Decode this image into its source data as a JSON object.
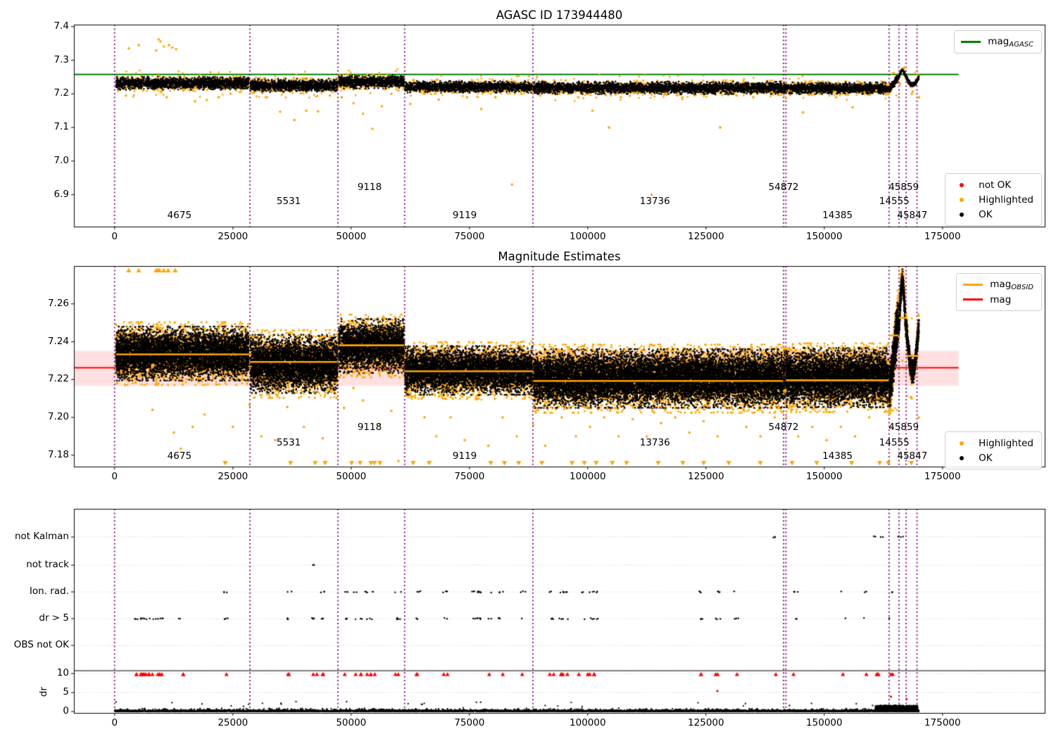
{
  "titles": {
    "top": "AGASC ID 173944480",
    "middle": "Magnitude Estimates"
  },
  "colors": {
    "ok": "#000000",
    "highlighted": "#ffa500",
    "not_ok": "#ff0000",
    "mag_agasc_line": "#008000",
    "mag_line": "#ff0000",
    "mag_band": "rgba(255,0,0,0.12)",
    "obsid_line": "#ffa500",
    "vline": "#800080",
    "grid": "#c3c3c3",
    "spine": "#000000"
  },
  "chart_data": [
    {
      "id": "mag-overview",
      "type": "scatter",
      "title": "AGASC ID 173944480",
      "xlim": [
        -8600,
        196600
      ],
      "ylim": [
        6.805,
        7.406
      ],
      "xticks": [
        0,
        25000,
        50000,
        75000,
        100000,
        125000,
        150000,
        175000
      ],
      "yticks": [
        6.9,
        7.0,
        7.1,
        7.2,
        7.3,
        7.4
      ],
      "ytick_decimals": 1,
      "mag_agasc": 7.258,
      "line_xmax": 178400,
      "vlines": [
        0,
        28600,
        47200,
        61300,
        88400,
        141400,
        141900,
        163700,
        165800,
        167300,
        169600
      ],
      "label_rows_y": [
        6.92,
        6.878,
        6.836
      ],
      "legend_lines": [
        {
          "label": "mag",
          "sub": "AGASC",
          "color": "#008000"
        }
      ],
      "legend_points": [
        {
          "label": "not OK",
          "color": "#ff0000"
        },
        {
          "label": "Highlighted",
          "color": "#ffa500"
        },
        {
          "label": "OK",
          "color": "#000000"
        }
      ],
      "obsids": [
        {
          "id": "4675",
          "x0": 300,
          "x1": 28400,
          "ylo": 7.214,
          "yhi": 7.249,
          "shape": "flat",
          "label_x": 13700,
          "label_row": 2
        },
        {
          "id": "5531",
          "x0": 28700,
          "x1": 47100,
          "ylo": 7.207,
          "yhi": 7.243,
          "shape": "flat",
          "label_x": 36800,
          "label_row": 1
        },
        {
          "id": "9118",
          "x0": 47400,
          "x1": 61200,
          "ylo": 7.218,
          "yhi": 7.2535,
          "shape": "flat",
          "label_x": 53900,
          "label_row": 0
        },
        {
          "id": "9119",
          "x0": 61400,
          "x1": 88300,
          "ylo": 7.2053,
          "yhi": 7.2367,
          "shape": "flat",
          "label_x": 74000,
          "label_row": 2
        },
        {
          "id": "13736",
          "x0": 88500,
          "x1": 141300,
          "ylo": 7.201,
          "yhi": 7.2346,
          "shape": "flat",
          "label_x": 114200,
          "label_row": 1
        },
        {
          "id": "54872",
          "x0": 141400,
          "x1": 141800,
          "ylo": 7.201,
          "yhi": 7.2325,
          "shape": "flat",
          "label_x": 141400,
          "label_row": 0
        },
        {
          "id": "14385",
          "x0": 141900,
          "x1": 163600,
          "ylo": 7.201,
          "yhi": 7.2325,
          "shape": "flat",
          "label_x": 152800,
          "label_row": 2
        },
        {
          "id": "14555",
          "x0": 163700,
          "x1": 165700,
          "ylo": 7.207,
          "yhi": 7.2555,
          "shape": "rise",
          "label_x": 164800,
          "label_row": 1
        },
        {
          "id": "45859",
          "x0": 165800,
          "x1": 167200,
          "ylo": 7.243,
          "yhi": 7.272,
          "shape": "bump",
          "label_x": 166800,
          "label_row": 0
        },
        {
          "id": "45847",
          "x0": 167300,
          "x1": 170000,
          "ylo": 7.214,
          "yhi": 7.253,
          "shape": "dip",
          "label_x": 168600,
          "label_row": 2
        }
      ],
      "outliers": [
        [
          3000,
          7.335
        ],
        [
          5100,
          7.345
        ],
        [
          8800,
          7.329
        ],
        [
          9300,
          7.362
        ],
        [
          9700,
          7.356
        ],
        [
          10400,
          7.341
        ],
        [
          11500,
          7.345
        ],
        [
          12200,
          7.338
        ],
        [
          13000,
          7.333
        ],
        [
          2400,
          7.195
        ],
        [
          6000,
          7.21
        ],
        [
          11000,
          7.19
        ],
        [
          14500,
          7.21
        ],
        [
          17000,
          7.178
        ],
        [
          19500,
          7.182
        ],
        [
          22000,
          7.19
        ],
        [
          24500,
          7.2
        ],
        [
          26500,
          7.205
        ],
        [
          29500,
          7.204
        ],
        [
          32000,
          7.19
        ],
        [
          35000,
          7.147
        ],
        [
          38000,
          7.122
        ],
        [
          40500,
          7.15
        ],
        [
          43000,
          7.148
        ],
        [
          45500,
          7.195
        ],
        [
          48000,
          7.19
        ],
        [
          50500,
          7.172
        ],
        [
          52500,
          7.141
        ],
        [
          54500,
          7.096
        ],
        [
          56500,
          7.163
        ],
        [
          58500,
          7.2
        ],
        [
          60000,
          7.21
        ],
        [
          62500,
          7.17
        ],
        [
          65500,
          7.2
        ],
        [
          68500,
          7.183
        ],
        [
          71500,
          7.205
        ],
        [
          74500,
          7.19
        ],
        [
          77500,
          7.155
        ],
        [
          80500,
          7.19
        ],
        [
          84000,
          6.93
        ],
        [
          86000,
          7.2
        ],
        [
          90000,
          7.195
        ],
        [
          94000,
          7.2
        ],
        [
          98000,
          7.19
        ],
        [
          101000,
          7.15
        ],
        [
          104500,
          7.1
        ],
        [
          107000,
          7.19
        ],
        [
          110500,
          7.205
        ],
        [
          113500,
          6.9
        ],
        [
          116500,
          7.2
        ],
        [
          120000,
          7.19
        ],
        [
          124000,
          7.2
        ],
        [
          128000,
          7.1
        ],
        [
          131500,
          7.195
        ],
        [
          135000,
          7.19
        ],
        [
          139000,
          7.205
        ],
        [
          142500,
          7.21
        ],
        [
          145500,
          7.145
        ],
        [
          149000,
          7.2
        ],
        [
          152500,
          7.19
        ],
        [
          156000,
          7.16
        ],
        [
          158500,
          7.205
        ],
        [
          161000,
          7.21
        ],
        [
          163500,
          7.2
        ],
        [
          166000,
          7.229
        ],
        [
          168500,
          7.2
        ],
        [
          170000,
          7.19
        ]
      ]
    },
    {
      "id": "mag-estimates",
      "type": "scatter",
      "title": "Magnitude Estimates",
      "xlim": [
        -8600,
        196600
      ],
      "ylim": [
        7.174,
        7.28
      ],
      "xticks": [
        0,
        25000,
        50000,
        75000,
        100000,
        125000,
        150000,
        175000
      ],
      "yticks": [
        7.18,
        7.2,
        7.22,
        7.24,
        7.26
      ],
      "ytick_decimals": 2,
      "mag": 7.2263,
      "mag_band": [
        7.2167,
        7.2352
      ],
      "line_xmax": 178400,
      "vlines": [
        0,
        28600,
        47200,
        61300,
        88400,
        141400,
        141900,
        163700,
        165800,
        167300,
        169600
      ],
      "label_rows_y": [
        7.1945,
        7.1863,
        7.1792
      ],
      "legend_lines": [
        {
          "label": "mag",
          "sub": "OBSID",
          "color": "#ffa500"
        },
        {
          "label": "mag",
          "color": "#ff0000"
        }
      ],
      "legend_points": [
        {
          "label": "Highlighted",
          "color": "#ffa500"
        },
        {
          "label": "OK",
          "color": "#000000"
        }
      ],
      "obsids": [
        {
          "id": "4675",
          "x0": 300,
          "x1": 28400,
          "ylo": 7.221,
          "yhi": 7.2465,
          "line": 7.2333,
          "shape": "flat",
          "label_x": 13700,
          "label_row": 2
        },
        {
          "id": "5531",
          "x0": 28700,
          "x1": 47100,
          "ylo": 7.2145,
          "yhi": 7.242,
          "line": 7.2293,
          "shape": "flat",
          "label_x": 36800,
          "label_row": 1
        },
        {
          "id": "9118",
          "x0": 47400,
          "x1": 61200,
          "ylo": 7.225,
          "yhi": 7.2505,
          "line": 7.2381,
          "shape": "flat",
          "label_x": 53900,
          "label_row": 0
        },
        {
          "id": "9119",
          "x0": 61400,
          "x1": 88300,
          "ylo": 7.2133,
          "yhi": 7.2363,
          "line": 7.2244,
          "shape": "flat",
          "label_x": 74000,
          "label_row": 2
        },
        {
          "id": "13736",
          "x0": 88500,
          "x1": 141300,
          "ylo": 7.2067,
          "yhi": 7.2344,
          "line": 7.2193,
          "shape": "flat",
          "label_x": 114200,
          "label_row": 1
        },
        {
          "id": "54872",
          "x0": 141400,
          "x1": 141800,
          "ylo": 7.207,
          "yhi": 7.235,
          "shape": "flat",
          "label_x": 141400,
          "label_row": 0
        },
        {
          "id": "14385",
          "x0": 141900,
          "x1": 163600,
          "ylo": 7.207,
          "yhi": 7.235,
          "line": 7.2196,
          "shape": "flat",
          "label_x": 152800,
          "label_row": 2
        },
        {
          "id": "14555",
          "x0": 163700,
          "x1": 165700,
          "ylo": 7.206,
          "yhi": 7.258,
          "line": 7.2433,
          "shape": "rise",
          "label_x": 164800,
          "label_row": 1
        },
        {
          "id": "45859",
          "x0": 165800,
          "x1": 167200,
          "ylo": 7.236,
          "yhi": 7.2745,
          "line": 7.2526,
          "shape": "bump",
          "label_x": 166800,
          "label_row": 0
        },
        {
          "id": "45847",
          "x0": 167300,
          "x1": 170000,
          "ylo": 7.212,
          "yhi": 7.2515,
          "line": 7.2325,
          "shape": "dip",
          "label_x": 168600,
          "label_row": 2
        }
      ],
      "clip_top_x": [
        3000,
        5100,
        8800,
        9200,
        9500,
        10400,
        11300,
        12800
      ],
      "clip_bottom_x": [
        23400,
        37200,
        42400,
        44500,
        50100,
        51900,
        54200,
        54900,
        56100,
        63100,
        66500,
        79500,
        82400,
        85400,
        90300,
        96700,
        99300,
        101800,
        105200,
        108200,
        114900,
        120100,
        124500,
        129800,
        136500,
        143200,
        148400,
        155800,
        161700,
        163500,
        168400
      ],
      "outliers": [
        [
          8000,
          7.204
        ],
        [
          12500,
          7.192
        ],
        [
          14000,
          7.1835
        ],
        [
          16500,
          7.195
        ],
        [
          19000,
          7.2015
        ],
        [
          25000,
          7.195
        ],
        [
          28500,
          7.2065
        ],
        [
          31000,
          7.19
        ],
        [
          34000,
          7.188
        ],
        [
          36500,
          7.2055
        ],
        [
          40000,
          7.195
        ],
        [
          44000,
          7.189
        ],
        [
          48500,
          7.205
        ],
        [
          50500,
          7.2155
        ],
        [
          52500,
          7.209
        ],
        [
          56000,
          7.196
        ],
        [
          58500,
          7.2035
        ],
        [
          60000,
          7.177
        ],
        [
          63500,
          7.2105
        ],
        [
          65500,
          7.2
        ],
        [
          68000,
          7.19
        ],
        [
          71000,
          7.2
        ],
        [
          74000,
          7.188
        ],
        [
          76500,
          7.2095
        ],
        [
          79000,
          7.185
        ],
        [
          82000,
          7.2
        ],
        [
          85000,
          7.19
        ],
        [
          88500,
          7.196
        ],
        [
          91000,
          7.185
        ],
        [
          94500,
          7.2
        ],
        [
          97500,
          7.19
        ],
        [
          100500,
          7.195
        ],
        [
          103500,
          7.2
        ],
        [
          106500,
          7.19
        ],
        [
          109500,
          7.199
        ],
        [
          112500,
          7.19
        ],
        [
          115500,
          7.197
        ],
        [
          118500,
          7.2
        ],
        [
          121500,
          7.192
        ],
        [
          124500,
          7.198
        ],
        [
          127500,
          7.19
        ],
        [
          130500,
          7.205
        ],
        [
          133500,
          7.195
        ],
        [
          136500,
          7.19
        ],
        [
          139500,
          7.2
        ],
        [
          142000,
          7.2
        ],
        [
          144500,
          7.19
        ],
        [
          147500,
          7.195
        ],
        [
          150500,
          7.188
        ],
        [
          153500,
          7.195
        ],
        [
          156500,
          7.19
        ],
        [
          159500,
          7.2
        ],
        [
          161500,
          7.21
        ],
        [
          164000,
          7.195
        ],
        [
          166500,
          7.23
        ],
        [
          168500,
          7.21
        ],
        [
          170000,
          7.2
        ]
      ]
    },
    {
      "id": "flags",
      "type": "categorical",
      "xlim": [
        -8600,
        196600
      ],
      "xticks": [
        0,
        25000,
        50000,
        75000,
        100000,
        125000,
        150000,
        175000
      ],
      "categories": [
        "not Kalman",
        "not track",
        "Ion. rad.",
        "dr > 5",
        "OBS not OK"
      ],
      "dr_label": "dr",
      "dr_ticks": [
        10,
        5,
        0
      ],
      "dr_limit": 10,
      "vlines": [
        0,
        28600,
        47200,
        61300,
        88400,
        141400,
        141900,
        163700,
        165800,
        167300,
        169600
      ],
      "flags": {
        "not_kalman_x": [
          139700,
          160600,
          162500,
          166100
        ],
        "not_track_x": [
          42100
        ],
        "ion_rad_x": [
          23500,
          37000,
          43900,
          49000,
          50700,
          52400,
          53600,
          54500,
          59800,
          60300,
          64300,
          69800,
          75600,
          76500,
          77200,
          79300,
          81700,
          86300,
          92400,
          94500,
          95200,
          98800,
          100900,
          101600,
          124000,
          127500,
          131400,
          143900,
          153900,
          158600,
          164100
        ],
        "dr_gt5_extra_x": [
          4300,
          5400,
          6000,
          6500,
          7300,
          8200,
          9100,
          9700,
          10400,
          14100,
          42200
        ],
        "obs_not_ok_x": [],
        "clipped_dr_x": [
          4300,
          5400,
          6000,
          6500,
          7300,
          8200,
          9100,
          9700,
          10400,
          14100,
          23500,
          37000,
          42300,
          43900,
          49000,
          50700,
          52400,
          53600,
          54500,
          59800,
          64300,
          69800,
          79000,
          81700,
          86300,
          92400,
          94500,
          95200,
          98500,
          100400,
          101600,
          124000,
          127500,
          131400,
          139700,
          143900,
          153900,
          158600,
          160700,
          161700,
          164100
        ],
        "red_dr_points": [
          [
            127400,
            5.4
          ],
          [
            164100,
            3.9
          ],
          [
            167400,
            3.3
          ]
        ]
      },
      "dr_band": {
        "x0": 0,
        "x1": 170000,
        "max": 2.3,
        "dense_x0": 160800,
        "dense_x1": 169800,
        "dense_max": 1.6
      }
    }
  ]
}
